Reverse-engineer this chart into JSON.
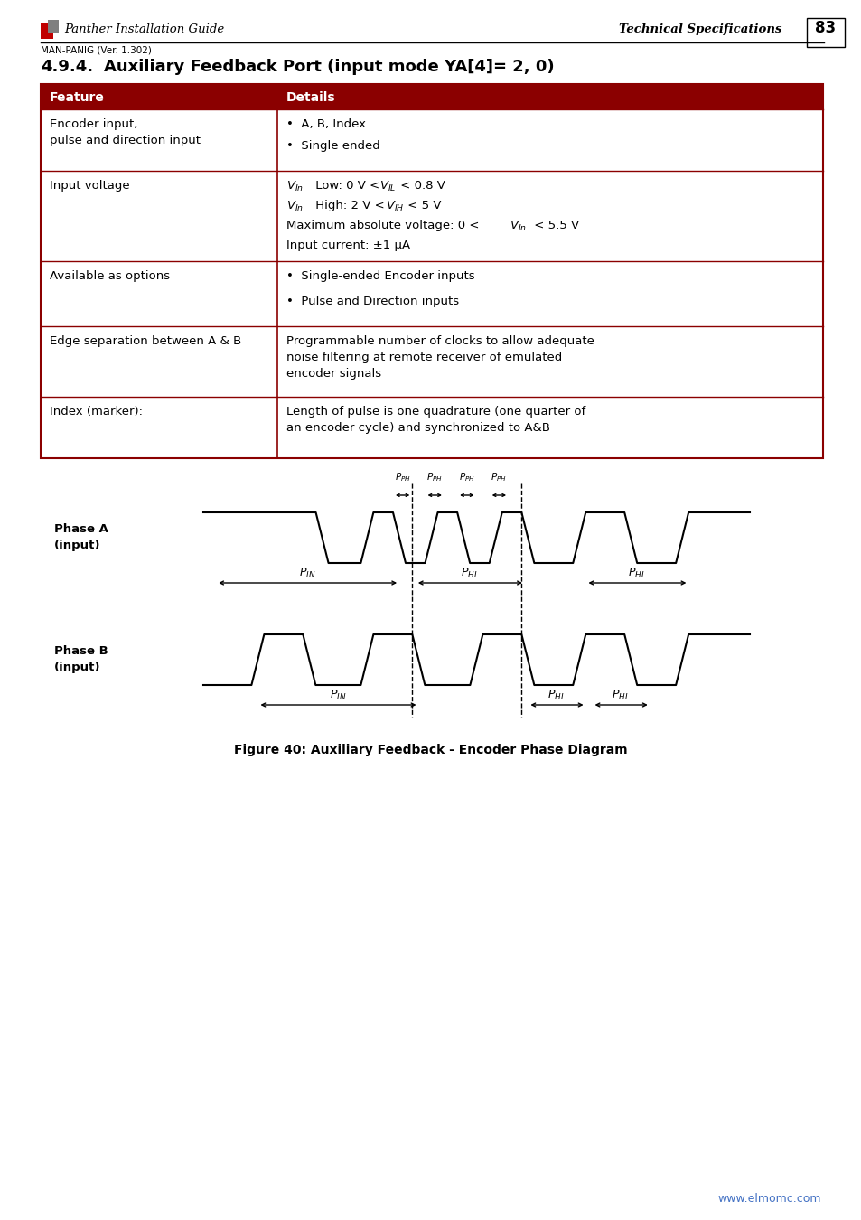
{
  "page_title": "4.9.4.        Auxiliary Feedback Port (input mode YA[4]= 2, 0)",
  "header_left": "Panther Installation Guide",
  "header_right": "Technical Specifications",
  "header_version": "MAN-PANIG (Ver. 1.302)",
  "page_number": "83",
  "table_header_bg": "#8B0000",
  "table_header_text": "#FFFFFF",
  "table_border_color": "#8B0000",
  "col1_header": "Feature",
  "col2_header": "Details",
  "logo_red": "#C00000",
  "logo_gray": "#7F7F7F",
  "figure_caption": "Figure 40: Auxiliary Feedback - Encoder Phase Diagram",
  "website": "www.elmomc.com",
  "website_color": "#4472C4"
}
